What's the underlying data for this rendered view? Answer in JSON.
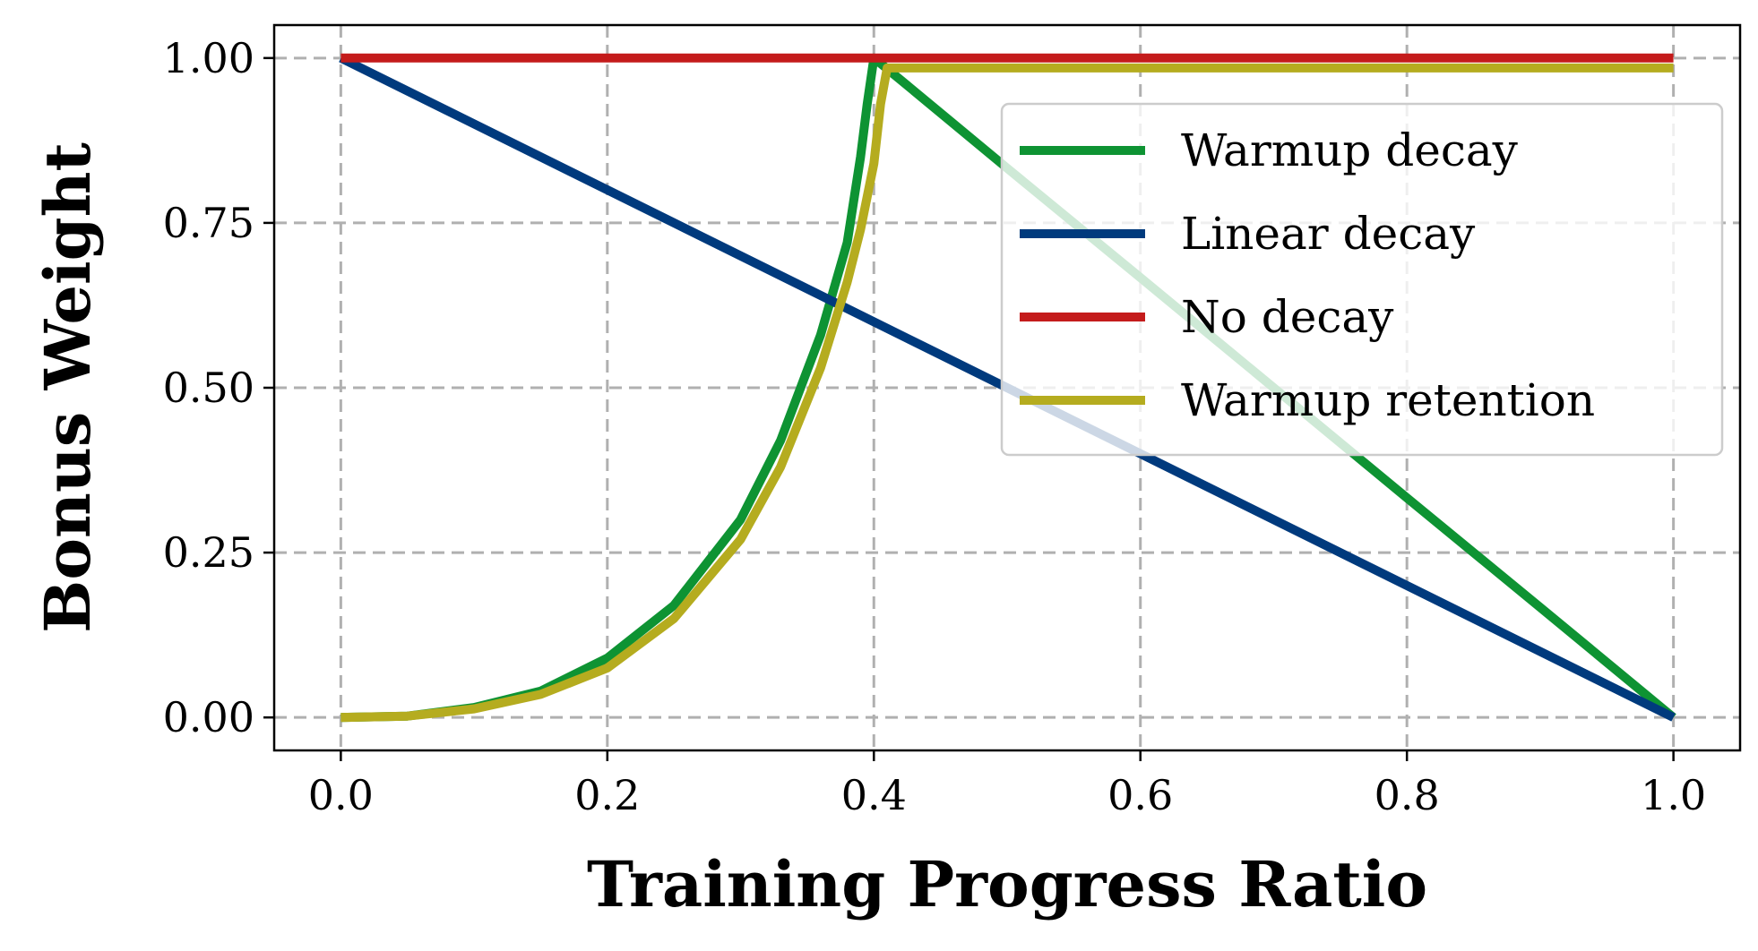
{
  "chart_data": {
    "type": "line",
    "title": "",
    "xlabel": "Training Progress Ratio",
    "ylabel": "Bonus Weight",
    "xlim": [
      -0.05,
      1.05
    ],
    "ylim": [
      -0.05,
      1.05
    ],
    "xticks": [
      0.0,
      0.2,
      0.4,
      0.6,
      0.8,
      1.0
    ],
    "xtick_labels": [
      "0.0",
      "0.2",
      "0.4",
      "0.6",
      "0.8",
      "1.0"
    ],
    "yticks": [
      0.0,
      0.25,
      0.5,
      0.75,
      1.0
    ],
    "ytick_labels": [
      "0.00",
      "0.25",
      "0.50",
      "0.75",
      "1.00"
    ],
    "grid": true,
    "legend_position": "top-right",
    "series": [
      {
        "name": "Warmup decay",
        "color": "#0e9333",
        "x": [
          0.0,
          0.05,
          0.1,
          0.15,
          0.2,
          0.25,
          0.3,
          0.33,
          0.36,
          0.38,
          0.39,
          0.395,
          0.4,
          0.42,
          0.5,
          0.6,
          0.7,
          0.8,
          0.9,
          1.0
        ],
        "y": [
          0.0,
          0.002,
          0.015,
          0.04,
          0.09,
          0.17,
          0.3,
          0.42,
          0.58,
          0.72,
          0.85,
          0.93,
          1.0,
          0.967,
          0.833,
          0.667,
          0.5,
          0.333,
          0.167,
          0.0
        ]
      },
      {
        "name": "Linear decay",
        "color": "#003a7d",
        "x": [
          0.0,
          1.0
        ],
        "y": [
          1.0,
          0.0
        ]
      },
      {
        "name": "No decay",
        "color": "#c41b1b",
        "x": [
          0.0,
          1.0
        ],
        "y": [
          1.0,
          1.0
        ]
      },
      {
        "name": "Warmup retention",
        "color": "#b5ac1f",
        "x": [
          0.0,
          0.05,
          0.1,
          0.15,
          0.2,
          0.25,
          0.3,
          0.33,
          0.36,
          0.38,
          0.39,
          0.4,
          0.405,
          0.41,
          1.0
        ],
        "y": [
          0.0,
          0.002,
          0.013,
          0.035,
          0.075,
          0.15,
          0.27,
          0.38,
          0.53,
          0.66,
          0.74,
          0.84,
          0.93,
          0.985,
          0.985
        ]
      }
    ]
  }
}
